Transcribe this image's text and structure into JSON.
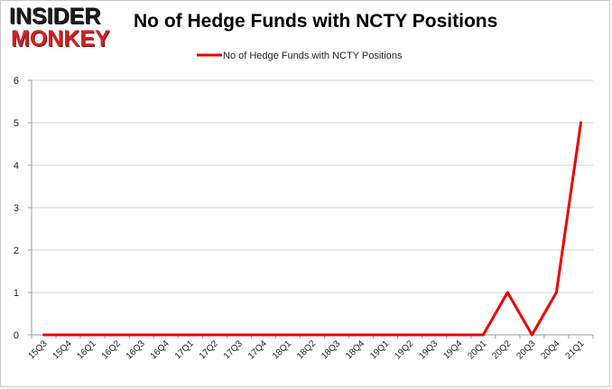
{
  "brand": {
    "line1": "INSIDER",
    "line2": "MONKEY"
  },
  "colors": {
    "series": "#ee0000",
    "grid": "#d0d0d0",
    "axis": "#999999",
    "logo_red": "#d31f26"
  },
  "chart_data": {
    "type": "line",
    "title": "No of Hedge Funds with NCTY Positions",
    "xlabel": "",
    "ylabel": "",
    "ylim": [
      0,
      6
    ],
    "yticks": [
      0,
      1,
      2,
      3,
      4,
      5,
      6
    ],
    "grid": true,
    "legend": "top-center",
    "categories": [
      "15Q3",
      "15Q4",
      "16Q1",
      "16Q2",
      "16Q3",
      "16Q4",
      "17Q1",
      "17Q2",
      "17Q3",
      "17Q4",
      "18Q1",
      "18Q2",
      "18Q3",
      "18Q4",
      "19Q1",
      "19Q2",
      "19Q3",
      "19Q4",
      "20Q1",
      "20Q2",
      "20Q3",
      "20Q4",
      "21Q1"
    ],
    "series": [
      {
        "name": "No of Hedge Funds with NCTY Positions",
        "values": [
          0,
          0,
          0,
          0,
          0,
          0,
          0,
          0,
          0,
          0,
          0,
          0,
          0,
          0,
          0,
          0,
          0,
          0,
          0,
          1,
          0,
          1,
          5
        ]
      }
    ]
  }
}
